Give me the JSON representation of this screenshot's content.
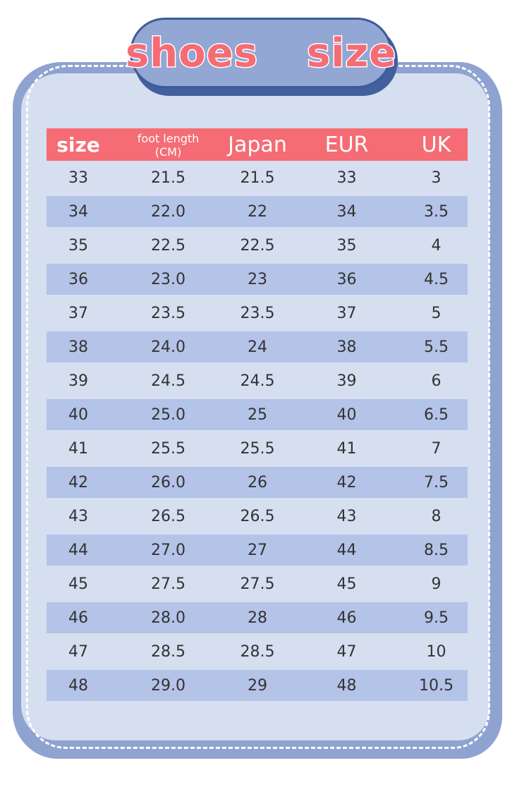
{
  "title": "shoes  size",
  "colors": {
    "frame": "#8fa3d1",
    "panel": "#d5dff0",
    "header": "#f56c74",
    "row_alt": "#b4c3e8",
    "title_text": "#f56c74"
  },
  "headers": {
    "size": "size",
    "foot_length_line1": "foot length",
    "foot_length_line2": "(CM)",
    "japan": "Japan",
    "eur": "EUR",
    "uk": "UK"
  },
  "rows": [
    [
      "33",
      "21.5",
      "21.5",
      "33",
      "3"
    ],
    [
      "34",
      "22.0",
      "22",
      "34",
      "3.5"
    ],
    [
      "35",
      "22.5",
      "22.5",
      "35",
      "4"
    ],
    [
      "36",
      "23.0",
      "23",
      "36",
      "4.5"
    ],
    [
      "37",
      "23.5",
      "23.5",
      "37",
      "5"
    ],
    [
      "38",
      "24.0",
      "24",
      "38",
      "5.5"
    ],
    [
      "39",
      "24.5",
      "24.5",
      "39",
      "6"
    ],
    [
      "40",
      "25.0",
      "25",
      "40",
      "6.5"
    ],
    [
      "41",
      "25.5",
      "25.5",
      "41",
      "7"
    ],
    [
      "42",
      "26.0",
      "26",
      "42",
      "7.5"
    ],
    [
      "43",
      "26.5",
      "26.5",
      "43",
      "8"
    ],
    [
      "44",
      "27.0",
      "27",
      "44",
      "8.5"
    ],
    [
      "45",
      "27.5",
      "27.5",
      "45",
      "9"
    ],
    [
      "46",
      "28.0",
      "28",
      "46",
      "9.5"
    ],
    [
      "47",
      "28.5",
      "28.5",
      "47",
      "10"
    ],
    [
      "48",
      "29.0",
      "29",
      "48",
      "10.5"
    ]
  ]
}
